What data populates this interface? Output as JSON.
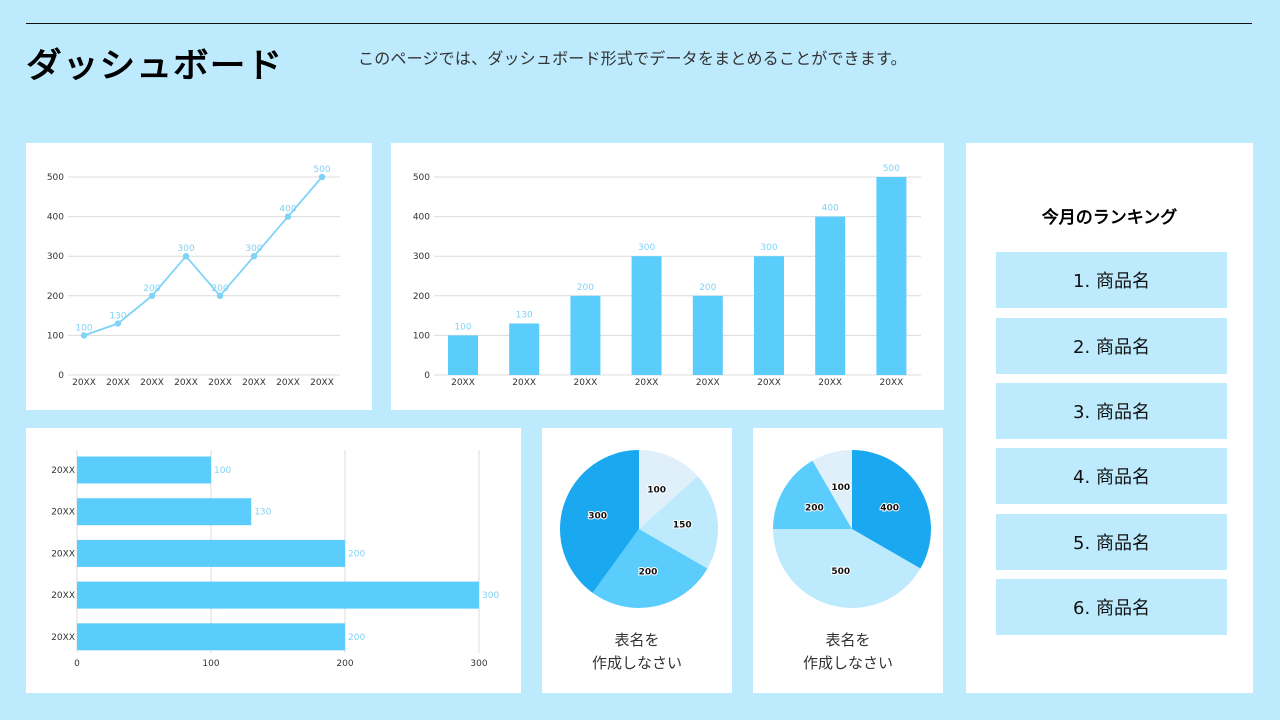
{
  "header": {
    "title": "ダッシュボード",
    "description": "このページでは、ダッシュボード形式でデータをまとめることができます。"
  },
  "colors": {
    "background": "#bdebfd",
    "card": "#ffffff",
    "bar": "#5bcdfd",
    "line": "#7fd3f7",
    "pie_dark": "#1aa9f0",
    "pie_mid": "#5bcdfd",
    "pie_light": "#bdebfd",
    "pie_pale": "#dff0fa",
    "rank_item": "#bdebfd"
  },
  "ranking": {
    "title": "今月のランキング",
    "items": [
      {
        "label": "1. 商品名"
      },
      {
        "label": "2. 商品名"
      },
      {
        "label": "3. 商品名"
      },
      {
        "label": "4. 商品名"
      },
      {
        "label": "5. 商品名"
      },
      {
        "label": "6. 商品名"
      }
    ]
  },
  "pie_captions": [
    {
      "line1": "表名を",
      "line2": "作成しなさい"
    },
    {
      "line1": "表名を",
      "line2": "作成しなさい"
    }
  ],
  "chart_data": [
    {
      "type": "line",
      "title": "",
      "categories": [
        "20XX",
        "20XX",
        "20XX",
        "20XX",
        "20XX",
        "20XX",
        "20XX",
        "20XX"
      ],
      "values": [
        100,
        130,
        200,
        300,
        200,
        300,
        400,
        500
      ],
      "xlabel": "",
      "ylabel": "",
      "ylim": [
        0,
        500
      ],
      "yticks": [
        0,
        100,
        200,
        300,
        400,
        500
      ],
      "grid": true,
      "data_labels": true
    },
    {
      "type": "bar",
      "title": "",
      "categories": [
        "20XX",
        "20XX",
        "20XX",
        "20XX",
        "20XX",
        "20XX",
        "20XX",
        "20XX"
      ],
      "values": [
        100,
        130,
        200,
        300,
        200,
        300,
        400,
        500
      ],
      "xlabel": "",
      "ylabel": "",
      "ylim": [
        0,
        500
      ],
      "yticks": [
        0,
        100,
        200,
        300,
        400,
        500
      ],
      "grid": true,
      "data_labels": true
    },
    {
      "type": "bar",
      "orientation": "horizontal",
      "title": "",
      "categories": [
        "20XX",
        "20XX",
        "20XX",
        "20XX",
        "20XX"
      ],
      "values": [
        100,
        130,
        200,
        300,
        200
      ],
      "xlabel": "",
      "ylabel": "",
      "xlim": [
        0,
        300
      ],
      "xticks": [
        0,
        100,
        200,
        300
      ],
      "grid": true,
      "data_labels": true
    },
    {
      "type": "pie",
      "title": "表名を作成しなさい",
      "labels": [
        "100",
        "150",
        "200",
        "300"
      ],
      "values": [
        100,
        150,
        200,
        300
      ],
      "colors": [
        "#dff0fa",
        "#bdebfd",
        "#5bcdfd",
        "#1aa9f0"
      ]
    },
    {
      "type": "pie",
      "title": "表名を作成しなさい",
      "labels": [
        "400",
        "500",
        "200",
        "100"
      ],
      "values": [
        400,
        500,
        200,
        100
      ],
      "colors": [
        "#1aa9f0",
        "#bdebfd",
        "#5bcdfd",
        "#dff0fa"
      ]
    }
  ]
}
